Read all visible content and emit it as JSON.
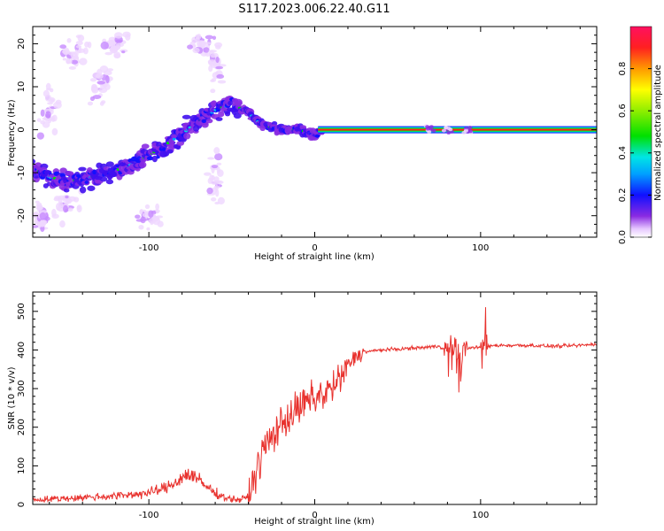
{
  "title": "S117.2023.006.22.40.G11",
  "chart_data": [
    {
      "type": "heatmap",
      "xlabel": "Height of straight line (km)",
      "ylabel": "Frequency (Hz)",
      "xlim": [
        -170,
        170
      ],
      "ylim": [
        -25,
        24
      ],
      "xticks": [
        -100,
        0,
        100
      ],
      "yticks": [
        -20,
        -10,
        0,
        10,
        20
      ],
      "colorbar": {
        "label": "Normalized spectral amplitude",
        "range": [
          0,
          1
        ],
        "ticks": [
          0.0,
          0.2,
          0.4,
          0.6,
          0.8
        ]
      },
      "ridge": [
        {
          "x": -170,
          "y": -9
        },
        {
          "x": -160,
          "y": -11
        },
        {
          "x": -150,
          "y": -12
        },
        {
          "x": -140,
          "y": -11.5
        },
        {
          "x": -130,
          "y": -10.5
        },
        {
          "x": -120,
          "y": -9.5
        },
        {
          "x": -110,
          "y": -8
        },
        {
          "x": -100,
          "y": -6
        },
        {
          "x": -90,
          "y": -3.5
        },
        {
          "x": -80,
          "y": -1
        },
        {
          "x": -70,
          "y": 2
        },
        {
          "x": -60,
          "y": 4.5
        },
        {
          "x": -50,
          "y": 6
        },
        {
          "x": -45,
          "y": 5
        },
        {
          "x": -40,
          "y": 4
        },
        {
          "x": -35,
          "y": 2
        },
        {
          "x": -30,
          "y": 1
        },
        {
          "x": -25,
          "y": 0.5
        },
        {
          "x": -20,
          "y": 0
        },
        {
          "x": -10,
          "y": 0
        },
        {
          "x": -5,
          "y": -0.5
        },
        {
          "x": 0,
          "y": -1.5
        },
        {
          "x": 5,
          "y": 0
        },
        {
          "x": 170,
          "y": 0
        }
      ],
      "scatter_clusters": [
        {
          "x": -145,
          "y": 18,
          "spread": [
            12,
            6
          ]
        },
        {
          "x": -160,
          "y": 5,
          "spread": [
            8,
            8
          ]
        },
        {
          "x": -130,
          "y": 10,
          "spread": [
            10,
            8
          ]
        },
        {
          "x": -120,
          "y": 20,
          "spread": [
            10,
            4
          ]
        },
        {
          "x": -70,
          "y": 20,
          "spread": [
            10,
            4
          ]
        },
        {
          "x": -60,
          "y": -12,
          "spread": [
            6,
            10
          ]
        },
        {
          "x": -60,
          "y": 15,
          "spread": [
            6,
            8
          ]
        },
        {
          "x": -100,
          "y": -20,
          "spread": [
            12,
            4
          ]
        },
        {
          "x": -150,
          "y": -18,
          "spread": [
            10,
            5
          ]
        },
        {
          "x": -165,
          "y": -20,
          "spread": [
            5,
            4
          ]
        }
      ]
    },
    {
      "type": "line",
      "xlabel": "Height of straight line (km)",
      "ylabel": "SNR (10 * v/v)",
      "xlim": [
        -170,
        170
      ],
      "ylim": [
        0,
        550
      ],
      "xticks": [
        -100,
        0,
        100
      ],
      "yticks": [
        0,
        100,
        200,
        300,
        400,
        500
      ],
      "series": [
        {
          "color": "#e8312d",
          "values": [
            [
              -170,
              12
            ],
            [
              -160,
              14
            ],
            [
              -150,
              16
            ],
            [
              -140,
              18
            ],
            [
              -130,
              20
            ],
            [
              -120,
              22
            ],
            [
              -110,
              26
            ],
            [
              -100,
              30
            ],
            [
              -90,
              42
            ],
            [
              -85,
              55
            ],
            [
              -80,
              70
            ],
            [
              -75,
              80
            ],
            [
              -70,
              62
            ],
            [
              -65,
              45
            ],
            [
              -60,
              30
            ],
            [
              -55,
              20
            ],
            [
              -50,
              14
            ],
            [
              -45,
              12
            ],
            [
              -40,
              20
            ],
            [
              -35,
              90
            ],
            [
              -30,
              150
            ],
            [
              -25,
              180
            ],
            [
              -20,
              210
            ],
            [
              -15,
              230
            ],
            [
              -10,
              245
            ],
            [
              -5,
              265
            ],
            [
              0,
              275
            ],
            [
              5,
              285
            ],
            [
              10,
              300
            ],
            [
              15,
              320
            ],
            [
              20,
              360
            ],
            [
              25,
              385
            ],
            [
              30,
              395
            ],
            [
              40,
              400
            ],
            [
              50,
              402
            ],
            [
              60,
              405
            ],
            [
              70,
              408
            ],
            [
              75,
              410
            ],
            [
              80,
              400
            ],
            [
              85,
              395
            ],
            [
              90,
              400
            ],
            [
              95,
              408
            ],
            [
              100,
              405
            ],
            [
              103,
              400
            ],
            [
              105,
              410
            ],
            [
              110,
              412
            ],
            [
              120,
              412
            ],
            [
              130,
              412
            ],
            [
              140,
              410
            ],
            [
              150,
              410
            ],
            [
              160,
              412
            ],
            [
              170,
              415
            ]
          ]
        }
      ]
    }
  ]
}
